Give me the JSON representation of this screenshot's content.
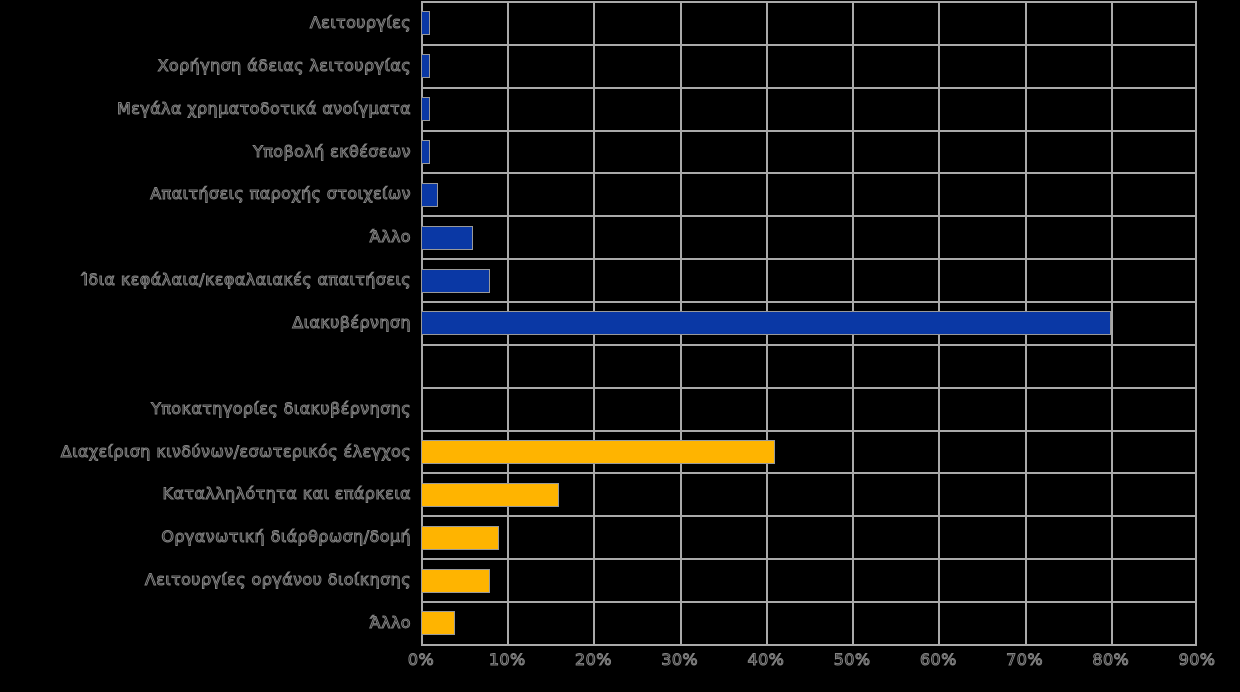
{
  "chart_data": {
    "type": "bar",
    "orientation": "horizontal",
    "title": "",
    "xlabel": "",
    "ylabel": "",
    "value_unit": "percent",
    "xlim": [
      0,
      90
    ],
    "x_ticks": [
      "0%",
      "10%",
      "20%",
      "30%",
      "40%",
      "50%",
      "60%",
      "70%",
      "80%",
      "90%"
    ],
    "grid": true,
    "legend": "none",
    "series": [
      {
        "name": "main-topics",
        "color": "#0a38a5",
        "data": [
          {
            "label": "Λειτουργίες",
            "value": 1
          },
          {
            "label": "Χορήγηση άδειας λειτουργίας",
            "value": 1
          },
          {
            "label": "Μεγάλα χρηματοδοτικά ανοίγματα",
            "value": 1
          },
          {
            "label": "Υποβολή εκθέσεων",
            "value": 1
          },
          {
            "label": "Απαιτήσεις παροχής στοιχείων",
            "value": 2
          },
          {
            "label": "Άλλο",
            "value": 6
          },
          {
            "label": "Ίδια κεφάλαια/κεφαλαιακές απαιτήσεις",
            "value": 8
          },
          {
            "label": "Διακυβέρνηση",
            "value": 80
          }
        ]
      },
      {
        "name": "governance-subcategories",
        "color": "#ffb400",
        "data": [
          {
            "label": "Υποκατηγορίες διακυβέρνησης",
            "value": null
          },
          {
            "label": "Διαχείριση κινδύνων/εσωτερικός έλεγχος",
            "value": 41
          },
          {
            "label": "Καταλληλότητα και επάρκεια",
            "value": 16
          },
          {
            "label": "Οργανωτική διάρθρωση/δομή",
            "value": 9
          },
          {
            "label": "Λειτουργίες οργάνου διοίκησης",
            "value": 8
          },
          {
            "label": "Άλλο",
            "value": 4
          }
        ]
      }
    ]
  },
  "colors": {
    "background": "#000000",
    "grid": "#a9a9a9",
    "text_outline": "#858585",
    "blue_series": "#0a38a5",
    "yellow_series": "#ffb400"
  }
}
